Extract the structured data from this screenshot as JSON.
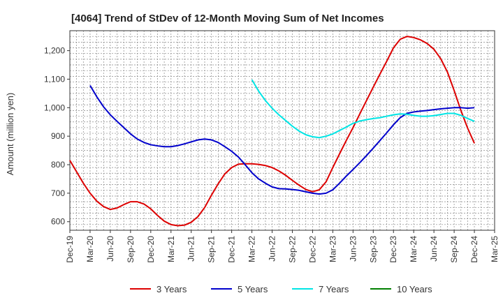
{
  "chart_data": {
    "type": "line",
    "title": "[4064]  Trend of StDev of 12-Month Moving Sum of Net Incomes",
    "xlabel": "",
    "ylabel": "Amount (million yen)",
    "ylim": [
      570,
      1270
    ],
    "yticks": [
      600,
      700,
      800,
      900,
      1000,
      1100,
      1200
    ],
    "ytick_labels": [
      "600",
      "700",
      "800",
      "900",
      "1,000",
      "1,100",
      "1,200"
    ],
    "xtick_labels": [
      "Dec-19",
      "Mar-20",
      "Jun-20",
      "Sep-20",
      "Dec-20",
      "Mar-21",
      "Jun-21",
      "Sep-21",
      "Dec-21",
      "Mar-22",
      "Jun-22",
      "Sep-22",
      "Dec-22",
      "Mar-23",
      "Jun-23",
      "Sep-23",
      "Dec-23",
      "Mar-24",
      "Jun-24",
      "Sep-24",
      "Dec-24",
      "Mar-25"
    ],
    "grid": true,
    "legend_position": "bottom",
    "series": [
      {
        "name": "3 Years",
        "color": "#dd0000",
        "x": [
          "Dec-19",
          "Jan-20",
          "Feb-20",
          "Mar-20",
          "Apr-20",
          "May-20",
          "Jun-20",
          "Jul-20",
          "Aug-20",
          "Sep-20",
          "Oct-20",
          "Nov-20",
          "Dec-20",
          "Jan-21",
          "Feb-21",
          "Mar-21",
          "Apr-21",
          "May-21",
          "Jun-21",
          "Jul-21",
          "Aug-21",
          "Sep-21",
          "Oct-21",
          "Nov-21",
          "Dec-21",
          "Jan-22",
          "Feb-22",
          "Mar-22",
          "Apr-22",
          "May-22",
          "Jun-22",
          "Jul-22",
          "Aug-22",
          "Sep-22",
          "Oct-22",
          "Nov-22",
          "Dec-22",
          "Jan-23",
          "Feb-23",
          "Mar-23",
          "Apr-23",
          "May-23",
          "Jun-23",
          "Jul-23",
          "Aug-23",
          "Sep-23",
          "Oct-23",
          "Nov-23",
          "Dec-23",
          "Jan-24",
          "Feb-24",
          "Mar-24",
          "Apr-24",
          "May-24",
          "Jun-24",
          "Jul-24",
          "Aug-24",
          "Sep-24",
          "Oct-24",
          "Nov-24",
          "Dec-24"
        ],
        "values": [
          815,
          775,
          735,
          700,
          672,
          653,
          643,
          648,
          660,
          670,
          670,
          662,
          645,
          622,
          602,
          590,
          586,
          588,
          598,
          618,
          650,
          693,
          733,
          768,
          790,
          802,
          803,
          803,
          801,
          797,
          790,
          778,
          763,
          745,
          728,
          713,
          705,
          712,
          740,
          790,
          838,
          885,
          930,
          978,
          1025,
          1072,
          1118,
          1163,
          1210,
          1240,
          1250,
          1246,
          1238,
          1225,
          1205,
          1172,
          1125,
          1060,
          990,
          928,
          875
        ]
      },
      {
        "name": "5 Years",
        "color": "#0000cc",
        "x": [
          "Mar-20",
          "Apr-20",
          "May-20",
          "Jun-20",
          "Jul-20",
          "Aug-20",
          "Sep-20",
          "Oct-20",
          "Nov-20",
          "Dec-20",
          "Jan-21",
          "Feb-21",
          "Mar-21",
          "Apr-21",
          "May-21",
          "Jun-21",
          "Jul-21",
          "Aug-21",
          "Sep-21",
          "Oct-21",
          "Nov-21",
          "Dec-21",
          "Jan-22",
          "Feb-22",
          "Mar-22",
          "Apr-22",
          "May-22",
          "Jun-22",
          "Jul-22",
          "Aug-22",
          "Sep-22",
          "Oct-22",
          "Nov-22",
          "Dec-22",
          "Jan-23",
          "Feb-23",
          "Mar-23",
          "Apr-23",
          "May-23",
          "Jun-23",
          "Jul-23",
          "Aug-23",
          "Sep-23",
          "Oct-23",
          "Nov-23",
          "Dec-23",
          "Jan-24",
          "Feb-24",
          "Mar-24",
          "Apr-24",
          "May-24",
          "Jun-24",
          "Jul-24",
          "Aug-24",
          "Sep-24",
          "Oct-24",
          "Nov-24",
          "Dec-24"
        ],
        "values": [
          1078,
          1038,
          1003,
          975,
          952,
          930,
          908,
          890,
          878,
          870,
          866,
          863,
          863,
          867,
          873,
          880,
          887,
          890,
          887,
          878,
          863,
          847,
          827,
          800,
          772,
          750,
          735,
          722,
          716,
          715,
          713,
          710,
          705,
          700,
          697,
          700,
          712,
          735,
          760,
          783,
          807,
          832,
          858,
          885,
          912,
          940,
          965,
          980,
          985,
          988,
          990,
          993,
          996,
          998,
          1000,
          1000,
          998,
          1000
        ]
      },
      {
        "name": "7 Years",
        "color": "#00e5e5",
        "x": [
          "Mar-22",
          "Apr-22",
          "May-22",
          "Jun-22",
          "Jul-22",
          "Aug-22",
          "Sep-22",
          "Oct-22",
          "Nov-22",
          "Dec-22",
          "Jan-23",
          "Feb-23",
          "Mar-23",
          "Apr-23",
          "May-23",
          "Jun-23",
          "Jul-23",
          "Aug-23",
          "Sep-23",
          "Oct-23",
          "Nov-23",
          "Dec-23",
          "Jan-24",
          "Feb-24",
          "Mar-24",
          "Apr-24",
          "May-24",
          "Jun-24",
          "Jul-24",
          "Aug-24",
          "Sep-24",
          "Oct-24",
          "Nov-24",
          "Dec-24"
        ],
        "values": [
          1098,
          1058,
          1025,
          998,
          975,
          955,
          935,
          918,
          905,
          898,
          895,
          900,
          908,
          920,
          932,
          945,
          953,
          958,
          962,
          965,
          970,
          975,
          978,
          977,
          973,
          970,
          970,
          972,
          976,
          980,
          980,
          973,
          962,
          952
        ]
      },
      {
        "name": "10 Years",
        "color": "#008000",
        "x": [],
        "values": []
      }
    ]
  }
}
